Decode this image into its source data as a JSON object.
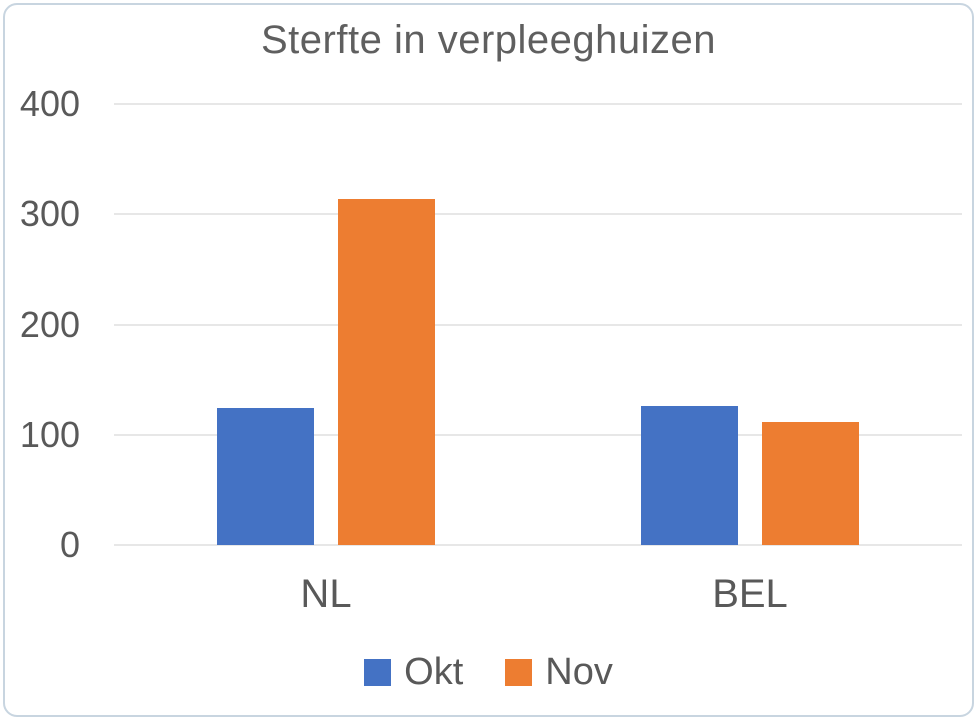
{
  "frame": {
    "background": "#ffffff",
    "border_color": "#c8d5e0"
  },
  "chart_data": {
    "type": "bar",
    "title": "Sterfte in verpleeghuizen",
    "categories": [
      "NL",
      "BEL"
    ],
    "series": [
      {
        "name": "Okt",
        "color": "#4472C4",
        "values": [
          124,
          126
        ]
      },
      {
        "name": "Nov",
        "color": "#ED7D31",
        "values": [
          314,
          112
        ]
      }
    ],
    "xlabel": "",
    "ylabel": "",
    "ylim": [
      0,
      400
    ],
    "yticks": [
      0,
      100,
      200,
      300,
      400
    ],
    "grid": true,
    "gridline_color": "#e7e7e7",
    "text_color": "#595959",
    "legend_position": "bottom"
  }
}
